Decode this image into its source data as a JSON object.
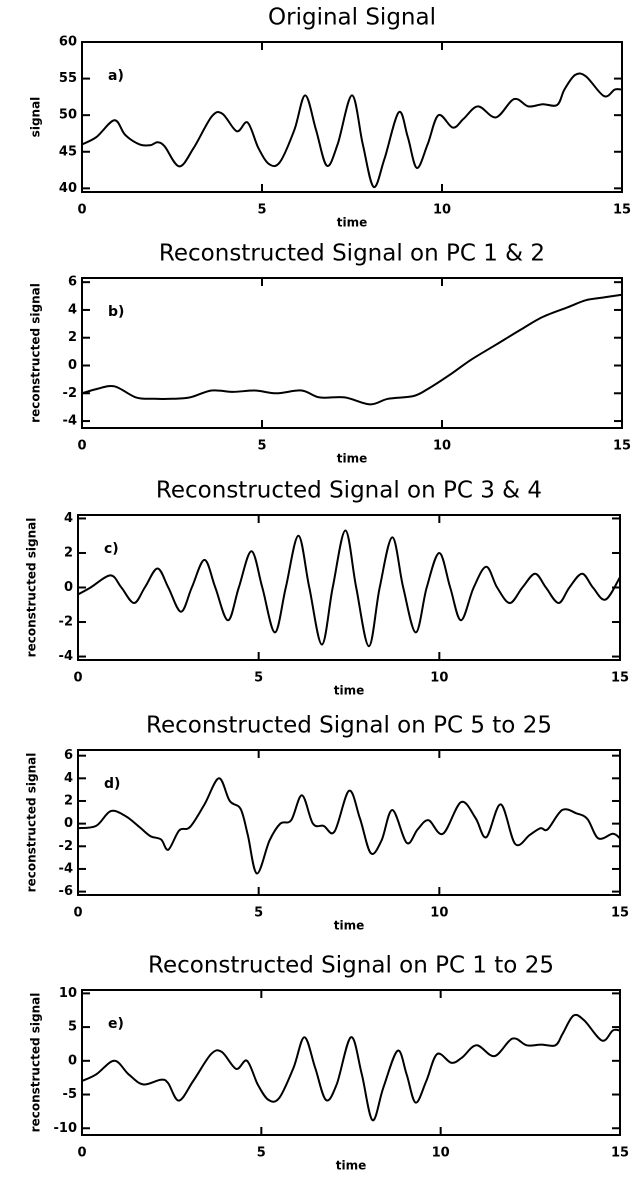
{
  "chart_data": [
    {
      "type": "line",
      "title": "Original Signal",
      "xlabel": "time",
      "ylabel": "signal",
      "annotation": "a)",
      "color": "#000000",
      "xlim": [
        0,
        15
      ],
      "xticks": [
        0,
        5,
        10,
        15
      ],
      "ylim": [
        39.5,
        60
      ],
      "yticks": [
        40,
        45,
        50,
        55,
        60
      ],
      "x": [
        0,
        0.4,
        0.9,
        1.2,
        1.6,
        1.9,
        2.1,
        2.3,
        2.7,
        3.1,
        3.6,
        3.9,
        4.3,
        4.6,
        4.9,
        5.2,
        5.5,
        5.9,
        6.2,
        6.5,
        6.8,
        7.1,
        7.5,
        7.8,
        8.1,
        8.4,
        8.8,
        9.05,
        9.3,
        9.6,
        9.9,
        10.3,
        10.6,
        11.0,
        11.5,
        12.0,
        12.4,
        12.8,
        13.2,
        13.4,
        13.7,
        14.0,
        14.5,
        14.8,
        15
      ],
      "values": [
        46,
        47,
        49.3,
        47.3,
        46,
        45.9,
        46.3,
        45.7,
        43,
        45.5,
        49.8,
        50.2,
        47.8,
        49,
        45.5,
        43.3,
        43.6,
        48,
        52.7,
        48,
        43.1,
        46,
        52.7,
        46,
        40.2,
        44,
        50.4,
        47,
        42.8,
        46,
        50,
        48.3,
        49.5,
        51.2,
        49.7,
        52.2,
        51.2,
        51.5,
        51.4,
        53.5,
        55.5,
        55.3,
        52.6,
        53.5,
        53.5
      ]
    },
    {
      "type": "line",
      "title": "Reconstructed Signal on PC 1 & 2",
      "xlabel": "time",
      "ylabel": "reconstructed signal",
      "annotation": "b)",
      "color": "#000000",
      "xlim": [
        0,
        15
      ],
      "xticks": [
        0,
        5,
        10,
        15
      ],
      "ylim": [
        -4.5,
        6.3
      ],
      "yticks": [
        -4,
        -2,
        0,
        2,
        4,
        6
      ],
      "x": [
        0,
        0.4,
        0.9,
        1.5,
        2.0,
        2.5,
        3.0,
        3.6,
        4.2,
        4.8,
        5.4,
        6.1,
        6.6,
        7.3,
        8.0,
        8.5,
        9.2,
        9.6,
        10.2,
        10.8,
        11.5,
        12.2,
        12.8,
        13.5,
        14.0,
        14.5,
        15
      ],
      "values": [
        -2,
        -1.7,
        -1.5,
        -2.3,
        -2.4,
        -2.4,
        -2.3,
        -1.8,
        -1.9,
        -1.8,
        -2.0,
        -1.8,
        -2.3,
        -2.3,
        -2.8,
        -2.4,
        -2.2,
        -1.7,
        -0.7,
        0.4,
        1.5,
        2.6,
        3.5,
        4.2,
        4.7,
        4.9,
        5.1
      ]
    },
    {
      "type": "line",
      "title": "Reconstructed Signal on PC 3 & 4",
      "xlabel": "time",
      "ylabel": "reconstructed signal",
      "annotation": "c)",
      "color": "#000000",
      "xlim": [
        0,
        15
      ],
      "xticks": [
        0,
        5,
        10,
        15
      ],
      "ylim": [
        -4.2,
        4.2
      ],
      "yticks": [
        -4,
        -2,
        0,
        2,
        4
      ],
      "x": [
        0,
        0.35,
        0.9,
        1.2,
        1.55,
        1.85,
        2.2,
        2.5,
        2.85,
        3.15,
        3.5,
        3.8,
        4.15,
        4.45,
        4.8,
        5.1,
        5.45,
        5.75,
        6.1,
        6.4,
        6.75,
        7.05,
        7.4,
        7.7,
        8.05,
        8.35,
        8.7,
        9.0,
        9.35,
        9.65,
        10.0,
        10.3,
        10.6,
        10.95,
        11.3,
        11.6,
        11.95,
        12.3,
        12.65,
        12.95,
        13.3,
        13.6,
        13.95,
        14.25,
        14.6,
        15
      ],
      "values": [
        -0.4,
        0,
        0.7,
        0,
        -0.9,
        0,
        1.1,
        0,
        -1.4,
        0,
        1.6,
        0,
        -1.9,
        0,
        2.1,
        0,
        -2.6,
        0,
        3.0,
        0,
        -3.3,
        0,
        3.3,
        0,
        -3.4,
        0,
        2.9,
        0,
        -2.6,
        0,
        2.0,
        0,
        -1.9,
        0,
        1.2,
        0,
        -0.9,
        0,
        0.8,
        0,
        -0.9,
        0,
        0.8,
        0,
        -0.7,
        0.6
      ]
    },
    {
      "type": "line",
      "title": "Reconstructed Signal on PC 5 to 25",
      "xlabel": "time",
      "ylabel": "reconstructed signal",
      "annotation": "d)",
      "color": "#000000",
      "xlim": [
        0,
        15
      ],
      "xticks": [
        0,
        5,
        10,
        15
      ],
      "ylim": [
        -6.3,
        6.5
      ],
      "yticks": [
        -6,
        -4,
        -2,
        0,
        2,
        4,
        6
      ],
      "x": [
        0,
        0.5,
        0.9,
        1.3,
        1.7,
        2.0,
        2.3,
        2.5,
        2.8,
        3.1,
        3.5,
        3.9,
        4.2,
        4.5,
        4.7,
        4.95,
        5.3,
        5.6,
        5.9,
        6.2,
        6.5,
        6.8,
        7.1,
        7.5,
        7.8,
        8.1,
        8.4,
        8.7,
        9.1,
        9.4,
        9.7,
        10.1,
        10.6,
        11.0,
        11.3,
        11.7,
        12.1,
        12.5,
        12.8,
        13.0,
        13.4,
        13.8,
        14.1,
        14.4,
        14.8,
        15
      ],
      "values": [
        -0.4,
        -0.2,
        1.1,
        0.7,
        -0.3,
        -1.1,
        -1.4,
        -2.3,
        -0.6,
        -0.3,
        1.7,
        4.0,
        2.0,
        1.3,
        -1.0,
        -4.4,
        -1.5,
        0.0,
        0.3,
        2.5,
        0.0,
        -0.2,
        -0.7,
        2.9,
        0.5,
        -2.6,
        -1.5,
        1.2,
        -1.7,
        -0.5,
        0.3,
        -0.9,
        1.9,
        0.5,
        -1.2,
        1.7,
        -1.8,
        -1.0,
        -0.4,
        -0.5,
        1.2,
        0.9,
        0.4,
        -1.3,
        -0.9,
        -1.3
      ]
    },
    {
      "type": "line",
      "title": "Reconstructed Signal on PC 1 to 25",
      "xlabel": "time",
      "ylabel": "reconstructed signal",
      "annotation": "e)",
      "color": "#000000",
      "xlim": [
        0,
        15
      ],
      "xticks": [
        0,
        5,
        10,
        15
      ],
      "ylim": [
        -11,
        10.5
      ],
      "yticks": [
        -10,
        -5,
        0,
        5,
        10
      ],
      "x": [
        0,
        0.4,
        0.9,
        1.3,
        1.7,
        2.2,
        2.4,
        2.7,
        3.1,
        3.6,
        3.9,
        4.3,
        4.6,
        4.9,
        5.2,
        5.5,
        5.9,
        6.2,
        6.5,
        6.8,
        7.1,
        7.5,
        7.8,
        8.1,
        8.4,
        8.8,
        9.05,
        9.3,
        9.6,
        9.9,
        10.3,
        10.6,
        11.0,
        11.5,
        12.0,
        12.4,
        12.8,
        13.2,
        13.4,
        13.7,
        14.0,
        14.5,
        14.8,
        15
      ],
      "values": [
        -3,
        -2,
        0,
        -2,
        -3.5,
        -2.8,
        -3.3,
        -5.9,
        -3,
        1,
        1.3,
        -1.2,
        0,
        -3.5,
        -5.8,
        -5.5,
        -1,
        3.5,
        -1,
        -5.8,
        -3.5,
        3.5,
        -2,
        -8.8,
        -4,
        1.5,
        -2,
        -6.2,
        -3,
        1,
        -0.3,
        0.5,
        2.3,
        0.7,
        3.3,
        2.3,
        2.4,
        2.3,
        4,
        6.7,
        6,
        3,
        4.5,
        4.5
      ]
    }
  ]
}
